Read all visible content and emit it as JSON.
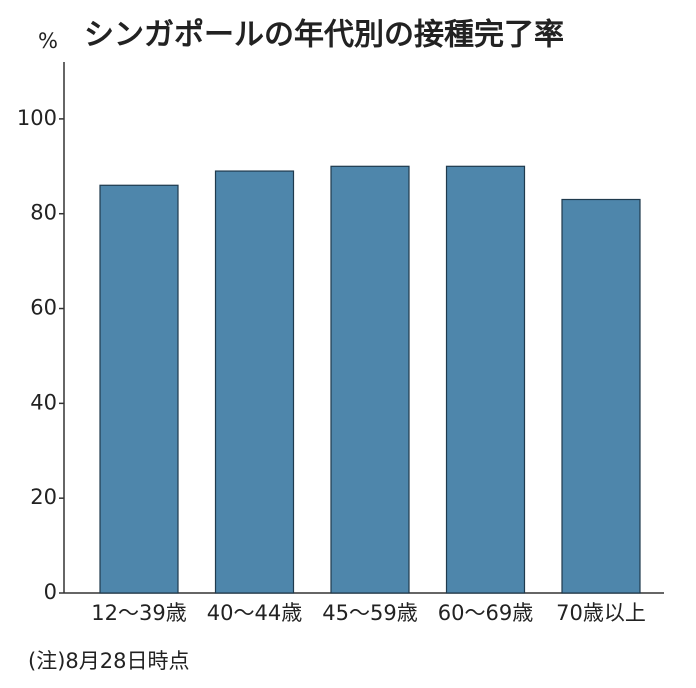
{
  "chart_data": {
    "type": "bar",
    "title": "シンガポールの年代別の接種完了率",
    "y_unit": "%",
    "categories": [
      "12〜39歳",
      "40〜44歳",
      "45〜59歳",
      "60〜69歳",
      "70歳以上"
    ],
    "values": [
      86,
      89,
      90,
      90,
      83
    ],
    "color": "#4e86ab",
    "ylim": [
      0,
      112
    ],
    "yticks": [
      0,
      20,
      40,
      60,
      80,
      100
    ],
    "grid": false,
    "note": "(注)8月28日時点"
  }
}
